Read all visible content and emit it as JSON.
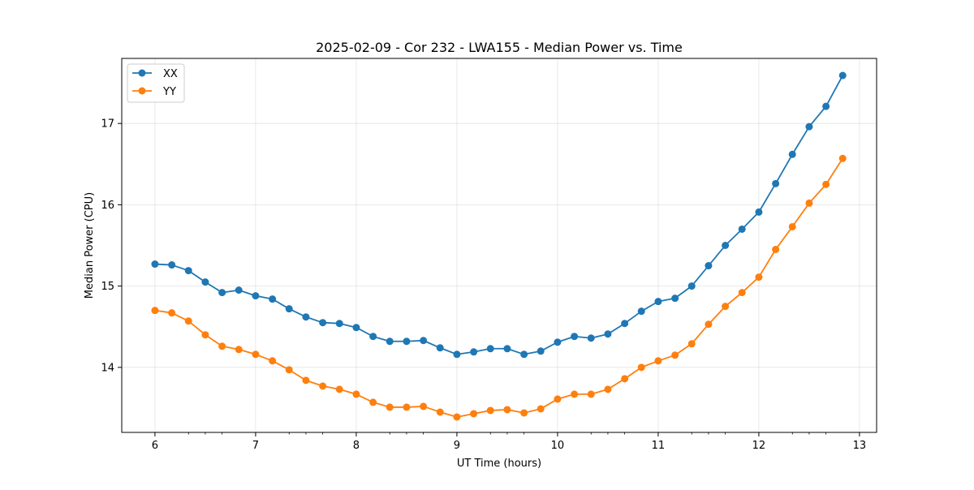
{
  "chart_data": {
    "type": "line",
    "title": "2025-02-09 - Cor 232 - LWA155 - Median Power vs. Time",
    "xlabel": "UT Time (hours)",
    "ylabel": "Median Power (CPU)",
    "xlim": [
      5.67,
      13.17
    ],
    "ylim": [
      13.2,
      17.8
    ],
    "xticks": [
      6,
      7,
      8,
      9,
      10,
      11,
      12,
      13
    ],
    "yticks": [
      14,
      15,
      16,
      17
    ],
    "grid": true,
    "legend_position": "top-left",
    "x": [
      6.0,
      6.167,
      6.333,
      6.5,
      6.667,
      6.833,
      7.0,
      7.167,
      7.333,
      7.5,
      7.667,
      7.833,
      8.0,
      8.167,
      8.333,
      8.5,
      8.667,
      8.833,
      9.0,
      9.167,
      9.333,
      9.5,
      9.667,
      9.833,
      10.0,
      10.167,
      10.333,
      10.5,
      10.667,
      10.833,
      11.0,
      11.167,
      11.333,
      11.5,
      11.667,
      11.833,
      12.0,
      12.167,
      12.333,
      12.5,
      12.667,
      12.833
    ],
    "series": [
      {
        "name": "XX",
        "color": "#1f77b4",
        "values": [
          15.27,
          15.26,
          15.19,
          15.05,
          14.92,
          14.95,
          14.88,
          14.84,
          14.72,
          14.62,
          14.55,
          14.54,
          14.49,
          14.38,
          14.32,
          14.32,
          14.33,
          14.24,
          14.16,
          14.19,
          14.23,
          14.23,
          14.16,
          14.2,
          14.31,
          14.38,
          14.36,
          14.41,
          14.54,
          14.69,
          14.81,
          14.85,
          15.0,
          15.25,
          15.5,
          15.7,
          15.91,
          16.26,
          16.62,
          16.96,
          17.21,
          17.59
        ]
      },
      {
        "name": "YY",
        "color": "#ff7f0e",
        "values": [
          14.7,
          14.67,
          14.57,
          14.4,
          14.26,
          14.22,
          14.16,
          14.08,
          13.97,
          13.84,
          13.77,
          13.73,
          13.67,
          13.57,
          13.51,
          13.51,
          13.52,
          13.45,
          13.39,
          13.43,
          13.47,
          13.48,
          13.44,
          13.49,
          13.61,
          13.67,
          13.67,
          13.73,
          13.86,
          14.0,
          14.08,
          14.15,
          14.29,
          14.53,
          14.75,
          14.92,
          15.11,
          15.45,
          15.73,
          16.02,
          16.25,
          16.57
        ]
      }
    ]
  }
}
